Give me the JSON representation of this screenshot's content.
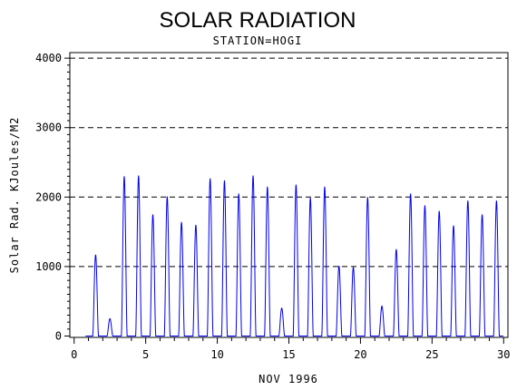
{
  "chart_data": {
    "type": "line",
    "title": "SOLAR RADIATION",
    "subtitle": "STATION=HOGI",
    "xlabel": "NOV 1996",
    "ylabel": "Solar Rad. KJoules/M2",
    "xlim": [
      -0.3,
      30.3
    ],
    "ylim": [
      -20,
      4080
    ],
    "x_ticks": [
      0,
      5,
      10,
      15,
      20,
      25,
      30
    ],
    "y_ticks": [
      0,
      1000,
      2000,
      3000,
      4000
    ],
    "grid": "horizontal-dashed",
    "legend": "none",
    "line_color": "#0000ee",
    "series": [
      {
        "daily_peaks": [
          [
            1.5,
            1170
          ],
          [
            2.5,
            250
          ],
          [
            3.5,
            2300
          ],
          [
            4.5,
            2310
          ],
          [
            5.5,
            1750
          ],
          [
            6.5,
            2010
          ],
          [
            7.5,
            1640
          ],
          [
            8.5,
            1600
          ],
          [
            9.5,
            2270
          ],
          [
            10.5,
            2240
          ],
          [
            11.5,
            2050
          ],
          [
            12.5,
            2310
          ],
          [
            13.5,
            2150
          ],
          [
            14.5,
            400
          ],
          [
            15.5,
            2180
          ],
          [
            16.5,
            1990
          ],
          [
            17.5,
            2150
          ],
          [
            18.5,
            1010
          ],
          [
            19.5,
            990
          ],
          [
            20.5,
            2000
          ],
          [
            21.5,
            430
          ],
          [
            22.5,
            1250
          ],
          [
            23.5,
            2050
          ],
          [
            24.5,
            1880
          ],
          [
            25.5,
            1800
          ],
          [
            26.5,
            1590
          ],
          [
            27.5,
            1950
          ],
          [
            28.5,
            1750
          ],
          [
            29.5,
            1950
          ]
        ]
      }
    ]
  }
}
